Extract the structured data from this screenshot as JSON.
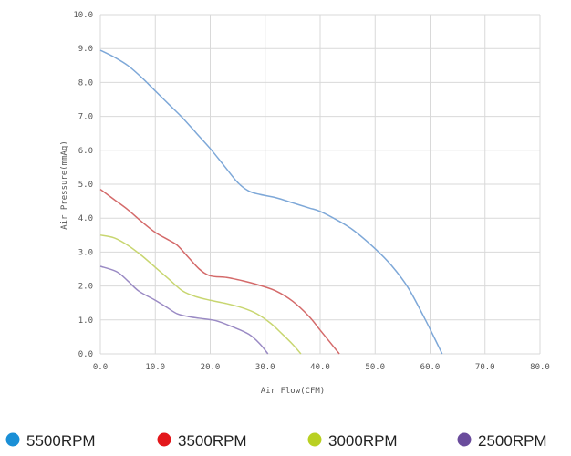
{
  "chart_data": {
    "type": "line",
    "title": "",
    "xlabel": "Air Flow(CFM)",
    "ylabel": "Air Pressure(mmAq)",
    "xlim": [
      0,
      80
    ],
    "ylim": [
      0,
      10
    ],
    "x_ticks": [
      "0.0",
      "10.0",
      "20.0",
      "30.0",
      "40.0",
      "50.0",
      "60.0",
      "70.0",
      "80.0"
    ],
    "y_ticks": [
      "0.0",
      "1.0",
      "2.0",
      "3.0",
      "4.0",
      "5.0",
      "6.0",
      "7.0",
      "8.0",
      "9.0",
      "10.0"
    ],
    "grid": true,
    "legend_position": "bottom",
    "series": [
      {
        "name": "5500RPM",
        "line_color": "#7ea8d8",
        "marker_color": "#1a8fd6",
        "points": [
          [
            0,
            8.95
          ],
          [
            2.5,
            8.75
          ],
          [
            5,
            8.5
          ],
          [
            7.5,
            8.15
          ],
          [
            10,
            7.75
          ],
          [
            12.5,
            7.35
          ],
          [
            15,
            6.95
          ],
          [
            17.5,
            6.5
          ],
          [
            20,
            6.05
          ],
          [
            22.5,
            5.55
          ],
          [
            25,
            5.05
          ],
          [
            27,
            4.8
          ],
          [
            29,
            4.7
          ],
          [
            32,
            4.6
          ],
          [
            35,
            4.45
          ],
          [
            38,
            4.3
          ],
          [
            40,
            4.2
          ],
          [
            43,
            3.95
          ],
          [
            46,
            3.65
          ],
          [
            50,
            3.1
          ],
          [
            53,
            2.6
          ],
          [
            56,
            1.95
          ],
          [
            59,
            1.05
          ],
          [
            61,
            0.4
          ],
          [
            62.2,
            0
          ]
        ]
      },
      {
        "name": "3500RPM",
        "line_color": "#d46a6a",
        "marker_color": "#e3171b",
        "points": [
          [
            0,
            4.85
          ],
          [
            2.5,
            4.55
          ],
          [
            5,
            4.25
          ],
          [
            7.5,
            3.9
          ],
          [
            10,
            3.58
          ],
          [
            12.5,
            3.35
          ],
          [
            14,
            3.2
          ],
          [
            16,
            2.85
          ],
          [
            18,
            2.5
          ],
          [
            20,
            2.3
          ],
          [
            23,
            2.25
          ],
          [
            26,
            2.15
          ],
          [
            29,
            2.02
          ],
          [
            32,
            1.85
          ],
          [
            35,
            1.55
          ],
          [
            38,
            1.1
          ],
          [
            40,
            0.7
          ],
          [
            42,
            0.3
          ],
          [
            43.5,
            0
          ]
        ]
      },
      {
        "name": "3000RPM",
        "line_color": "#c8d670",
        "marker_color": "#b9d022",
        "points": [
          [
            0,
            3.5
          ],
          [
            2.5,
            3.42
          ],
          [
            5,
            3.2
          ],
          [
            7.5,
            2.9
          ],
          [
            10,
            2.55
          ],
          [
            12.5,
            2.2
          ],
          [
            15,
            1.85
          ],
          [
            17.5,
            1.68
          ],
          [
            20,
            1.58
          ],
          [
            23,
            1.48
          ],
          [
            26,
            1.35
          ],
          [
            28.5,
            1.18
          ],
          [
            31,
            0.9
          ],
          [
            33,
            0.6
          ],
          [
            35,
            0.28
          ],
          [
            36.5,
            0
          ]
        ]
      },
      {
        "name": "2500RPM",
        "line_color": "#9a8ac4",
        "marker_color": "#6a4c9c",
        "points": [
          [
            0,
            2.58
          ],
          [
            3,
            2.42
          ],
          [
            5,
            2.15
          ],
          [
            7,
            1.85
          ],
          [
            10,
            1.58
          ],
          [
            12,
            1.38
          ],
          [
            14,
            1.18
          ],
          [
            16,
            1.1
          ],
          [
            18,
            1.05
          ],
          [
            21,
            0.98
          ],
          [
            24,
            0.8
          ],
          [
            27,
            0.58
          ],
          [
            29,
            0.3
          ],
          [
            30.5,
            0
          ]
        ]
      }
    ]
  }
}
